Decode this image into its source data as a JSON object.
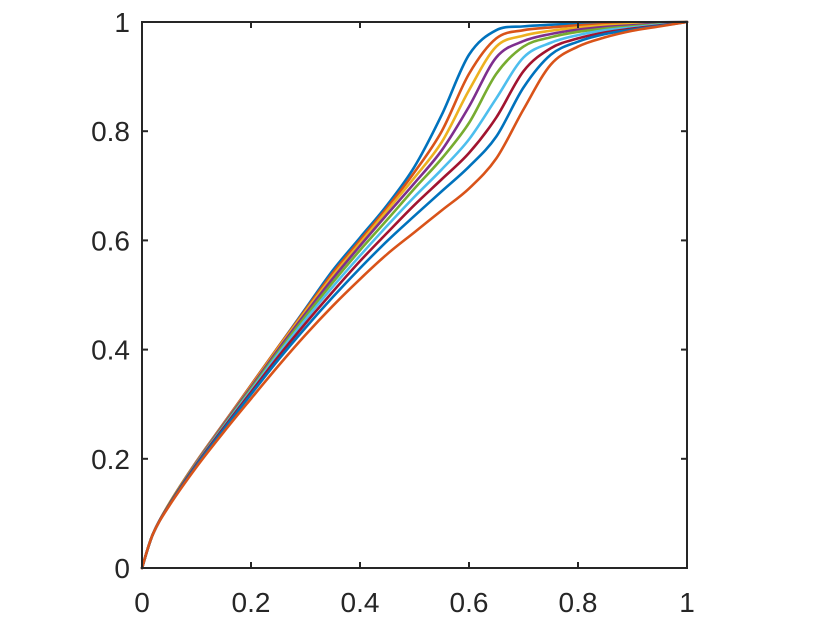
{
  "chart_data": {
    "type": "line",
    "title": "",
    "xlabel": "",
    "ylabel": "",
    "xlim": [
      0,
      1
    ],
    "ylim": [
      0,
      1
    ],
    "grid": false,
    "legend": "none",
    "x_ticks": [
      "0",
      "0.2",
      "0.4",
      "0.6",
      "0.8",
      "1"
    ],
    "y_ticks": [
      "0",
      "0.2",
      "0.4",
      "0.6",
      "0.8",
      "1"
    ],
    "x_tick_values": [
      0,
      0.2,
      0.4,
      0.6,
      0.8,
      1
    ],
    "y_tick_values": [
      0,
      0.2,
      0.4,
      0.6,
      0.8,
      1
    ],
    "x": [
      0,
      0.02,
      0.05,
      0.1,
      0.15,
      0.2,
      0.25,
      0.3,
      0.35,
      0.4,
      0.45,
      0.5,
      0.55,
      0.6,
      0.65,
      0.7,
      0.75,
      0.8,
      0.85,
      0.9,
      0.95,
      1
    ],
    "series": [
      {
        "color": "#0072BD",
        "values": [
          0,
          0.062,
          0.118,
          0.195,
          0.265,
          0.335,
          0.405,
          0.475,
          0.545,
          0.605,
          0.665,
          0.735,
          0.83,
          0.94,
          0.985,
          0.992,
          0.995,
          0.997,
          0.998,
          0.999,
          0.9995,
          1
        ]
      },
      {
        "color": "#D95319",
        "values": [
          0,
          0.062,
          0.118,
          0.195,
          0.265,
          0.335,
          0.405,
          0.473,
          0.54,
          0.6,
          0.66,
          0.725,
          0.8,
          0.905,
          0.97,
          0.985,
          0.99,
          0.994,
          0.996,
          0.998,
          0.999,
          1
        ]
      },
      {
        "color": "#EDB120",
        "values": [
          0,
          0.062,
          0.118,
          0.194,
          0.264,
          0.333,
          0.403,
          0.47,
          0.535,
          0.595,
          0.655,
          0.715,
          0.78,
          0.875,
          0.955,
          0.975,
          0.984,
          0.99,
          0.994,
          0.996,
          0.998,
          1
        ]
      },
      {
        "color": "#7E2F8E",
        "values": [
          0,
          0.062,
          0.117,
          0.193,
          0.263,
          0.331,
          0.4,
          0.466,
          0.53,
          0.59,
          0.648,
          0.705,
          0.765,
          0.845,
          0.935,
          0.965,
          0.978,
          0.986,
          0.991,
          0.994,
          0.997,
          1
        ]
      },
      {
        "color": "#77AC30",
        "values": [
          0,
          0.062,
          0.117,
          0.192,
          0.261,
          0.328,
          0.396,
          0.461,
          0.523,
          0.582,
          0.638,
          0.695,
          0.75,
          0.815,
          0.905,
          0.955,
          0.972,
          0.982,
          0.988,
          0.992,
          0.996,
          1
        ]
      },
      {
        "color": "#4DBEEE",
        "values": [
          0,
          0.062,
          0.116,
          0.191,
          0.259,
          0.325,
          0.392,
          0.455,
          0.515,
          0.572,
          0.627,
          0.68,
          0.73,
          0.785,
          0.86,
          0.935,
          0.962,
          0.976,
          0.985,
          0.99,
          0.995,
          1
        ]
      },
      {
        "color": "#A2142F",
        "values": [
          0,
          0.062,
          0.116,
          0.19,
          0.257,
          0.322,
          0.387,
          0.448,
          0.506,
          0.562,
          0.614,
          0.665,
          0.712,
          0.76,
          0.825,
          0.91,
          0.952,
          0.97,
          0.981,
          0.988,
          0.994,
          1
        ]
      },
      {
        "color": "#0072BD",
        "values": [
          0,
          0.062,
          0.115,
          0.188,
          0.254,
          0.318,
          0.381,
          0.44,
          0.496,
          0.549,
          0.599,
          0.645,
          0.69,
          0.735,
          0.79,
          0.88,
          0.94,
          0.964,
          0.978,
          0.986,
          0.993,
          1
        ]
      },
      {
        "color": "#D95319",
        "values": [
          0,
          0.062,
          0.114,
          0.185,
          0.249,
          0.31,
          0.37,
          0.427,
          0.48,
          0.529,
          0.575,
          0.615,
          0.655,
          0.695,
          0.75,
          0.84,
          0.922,
          0.955,
          0.972,
          0.984,
          0.992,
          1
        ]
      }
    ]
  }
}
